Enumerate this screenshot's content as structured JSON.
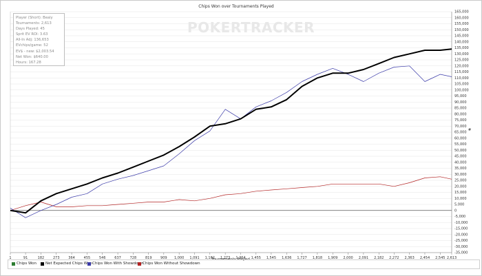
{
  "chart_data": {
    "type": "line",
    "title": "Chips Won over Tournaments Played",
    "xlabel": "Tournaments Played",
    "ylabel": "",
    "xlim": [
      1,
      2613
    ],
    "ylim": [
      -35000,
      165000
    ],
    "x_ticks": [
      "1",
      "91",
      "182",
      "273",
      "364",
      "455",
      "546",
      "637",
      "728",
      "819",
      "909",
      "1,000",
      "1,091",
      "1,182",
      "1,273",
      "1,364",
      "1,455",
      "1,545",
      "1,636",
      "1,727",
      "1,818",
      "1,909",
      "2,000",
      "2,091",
      "2,182",
      "2,272",
      "2,363",
      "2,454",
      "2,545",
      "2,613"
    ],
    "y_ticks": [
      "-35,000",
      "-30,000",
      "-25,000",
      "-20,000",
      "-15,000",
      "-10,000",
      "-5,000",
      "0",
      "5,000",
      "10,000",
      "15,000",
      "20,000",
      "25,000",
      "30,000",
      "35,000",
      "40,000",
      "45,000",
      "50,000",
      "55,000",
      "60,000",
      "65,000",
      "70,000",
      "75,000",
      "80,000",
      "85,000",
      "90,000",
      "95,000",
      "100,000",
      "105,000",
      "110,000",
      "115,000",
      "120,000",
      "125,000",
      "130,000",
      "135,000",
      "140,000",
      "145,000",
      "150,000",
      "155,000",
      "160,000",
      "165,000"
    ],
    "grid": "horizontal",
    "legend_position": "bottom",
    "series": [
      {
        "name": "Chips Won",
        "color": "#2e7d32",
        "x": [],
        "y": []
      },
      {
        "name": "Net Expected Chips Won",
        "color": "#000000",
        "x": [
          1,
          91,
          182,
          273,
          364,
          455,
          546,
          637,
          728,
          819,
          909,
          1000,
          1091,
          1182,
          1273,
          1364,
          1455,
          1545,
          1636,
          1727,
          1818,
          1909,
          2000,
          2091,
          2182,
          2272,
          2363,
          2454,
          2545,
          2613
        ],
        "y": [
          0,
          -2000,
          8000,
          14000,
          18000,
          22000,
          27000,
          31000,
          36000,
          41000,
          46000,
          53000,
          61000,
          70000,
          72000,
          76000,
          84000,
          86000,
          92000,
          103000,
          110000,
          114000,
          114000,
          117000,
          122000,
          127000,
          130000,
          133000,
          133000,
          134000
        ]
      },
      {
        "name": "Chips Won With Showdown",
        "color": "#3a3aa8",
        "x": [
          1,
          91,
          182,
          273,
          364,
          455,
          546,
          637,
          728,
          819,
          909,
          1000,
          1091,
          1182,
          1273,
          1364,
          1455,
          1545,
          1636,
          1727,
          1818,
          1909,
          2000,
          2091,
          2182,
          2272,
          2363,
          2454,
          2545,
          2613
        ],
        "y": [
          2000,
          -6000,
          0,
          5000,
          11000,
          14000,
          22000,
          26000,
          29000,
          33000,
          37000,
          47000,
          58000,
          66000,
          84000,
          76000,
          86000,
          91000,
          98000,
          107000,
          113000,
          118000,
          113000,
          107000,
          114000,
          119000,
          120000,
          107000,
          113000,
          111000
        ]
      },
      {
        "name": "Chips Won Without Showdown",
        "color": "#b22222",
        "x": [
          1,
          91,
          182,
          273,
          364,
          455,
          546,
          637,
          728,
          819,
          909,
          1000,
          1091,
          1182,
          1273,
          1364,
          1455,
          1545,
          1636,
          1727,
          1818,
          1909,
          2000,
          2091,
          2182,
          2272,
          2363,
          2454,
          2545,
          2613
        ],
        "y": [
          0,
          4000,
          7000,
          3000,
          3000,
          4000,
          4000,
          5000,
          6000,
          7000,
          7000,
          9000,
          8000,
          10000,
          13000,
          14000,
          16000,
          17000,
          18000,
          19000,
          20000,
          22000,
          22000,
          22000,
          22000,
          20000,
          23000,
          27000,
          28000,
          26000
        ]
      }
    ]
  },
  "stats": {
    "player": "Player (Short): Bealy",
    "tournaments": "Tournaments: 2,613",
    "days_played": "Days Played: 45",
    "sprit_ev_roi": "Sprit EV ROI: 3.63",
    "all_in_adj": "All-In Adj: 136,653",
    "ev_chips": "EVchips/game: 52",
    "ev_new": "EV$ - new: $2,003.54",
    "net_won": "Net Won: $640.00",
    "hours": "Hours: 167.28"
  },
  "logo_text": "POKERTRACKER",
  "y_axis_marker": "#"
}
